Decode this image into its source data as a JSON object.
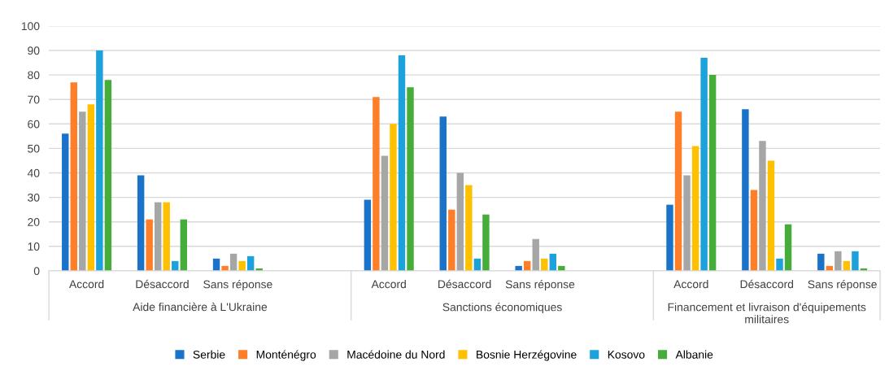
{
  "chart_data": {
    "type": "bar",
    "categories": [
      "Accord",
      "Désaccord",
      "Sans réponse",
      null,
      "Accord",
      "Désaccord",
      "Sans réponse",
      null,
      "Accord",
      "Désaccord",
      "Sans réponse"
    ],
    "series": [
      {
        "name": "Serbie",
        "color": "#1a73c8",
        "values": [
          56,
          39,
          5,
          null,
          29,
          63,
          2,
          null,
          27,
          66,
          7
        ]
      },
      {
        "name": "Monténégro",
        "color": "#fe7f27",
        "values": [
          77,
          21,
          2,
          null,
          71,
          25,
          4,
          null,
          65,
          33,
          2
        ]
      },
      {
        "name": "Macédoine du Nord",
        "color": "#a6a6a6",
        "values": [
          65,
          28,
          7,
          null,
          47,
          40,
          13,
          null,
          39,
          53,
          8
        ]
      },
      {
        "name": "Bosnie Herzégovine",
        "color": "#ffc000",
        "values": [
          68,
          28,
          4,
          null,
          60,
          35,
          5,
          null,
          51,
          45,
          4
        ]
      },
      {
        "name": "Kosovo",
        "color": "#1da1db",
        "values": [
          90,
          4,
          6,
          null,
          88,
          5,
          7,
          null,
          87,
          5,
          8
        ]
      },
      {
        "name": "Albanie",
        "color": "#46ad3a",
        "values": [
          78,
          21,
          1,
          null,
          75,
          23,
          2,
          null,
          80,
          19,
          1
        ]
      }
    ],
    "annotations": [
      "Aide financière à L'Ukraine",
      "Sanctions économiques",
      "Financement et livraison d'équipements militaires"
    ],
    "ylim": [
      0,
      100
    ],
    "yticks": [
      0,
      10,
      20,
      30,
      40,
      50,
      60,
      70,
      80,
      90,
      100
    ],
    "grid": "y",
    "legend": "bottom"
  }
}
